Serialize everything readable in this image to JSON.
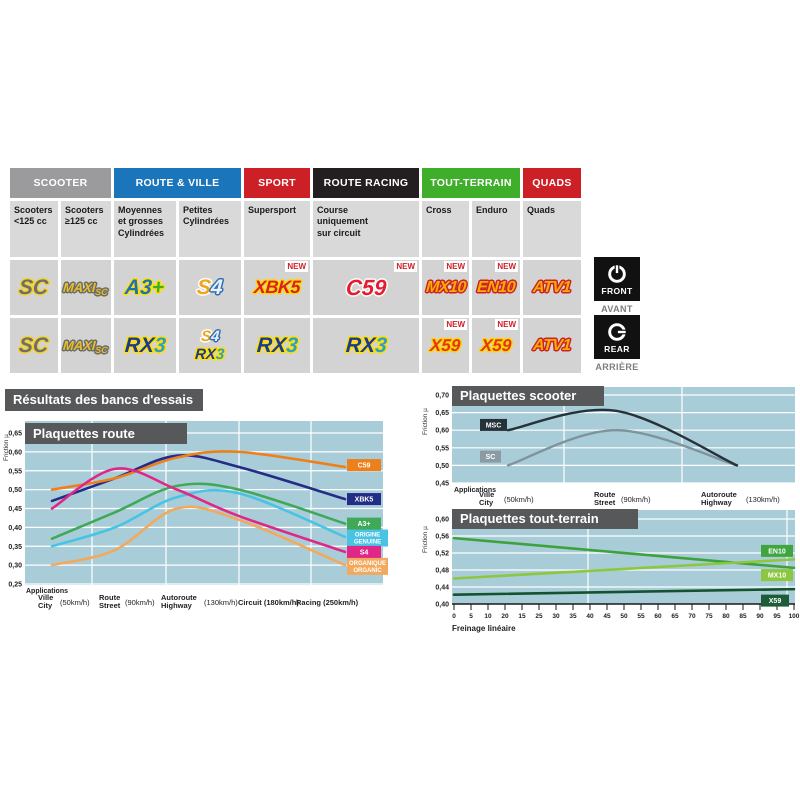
{
  "results_label": "Résultats des bancs d'essais",
  "axis_labels": {
    "applications": "Applications",
    "friction": "Friction µ"
  },
  "position_tags": {
    "front": {
      "label": "FRONT",
      "sub": "AVANT",
      "icon": "brake-disc-front-icon"
    },
    "rear": {
      "label": "REAR",
      "sub": "ARRIÈRE",
      "icon": "brake-disc-rear-icon"
    }
  },
  "matrix": {
    "new_label": "NEW",
    "groups": [
      {
        "label": "SCOOTER",
        "color": "#9b9b9d",
        "span": 2
      },
      {
        "label": "ROUTE & VILLE",
        "color": "#1b75bb",
        "span": 2
      },
      {
        "label": "SPORT",
        "color": "#cc2026",
        "span": 1
      },
      {
        "label": "ROUTE RACING",
        "color": "#231f20",
        "span": 1
      },
      {
        "label": "TOUT-TERRAIN",
        "color": "#3fae2a",
        "span": 2
      },
      {
        "label": "QUADS",
        "color": "#cc2026",
        "span": 1
      }
    ],
    "subheaders": [
      [
        "Scooters",
        "<125 cc"
      ],
      [
        "Scooters",
        "≥125 cc"
      ],
      [
        "Moyennes",
        "et grosses",
        "Cylindrées"
      ],
      [
        "Petites",
        "Cylindrées"
      ],
      [
        "Supersport"
      ],
      [
        "Course",
        "uniquement",
        "sur circuit"
      ],
      [
        "Cross"
      ],
      [
        "Enduro"
      ],
      [
        "Quads"
      ]
    ],
    "badges": {
      "sc": {
        "parts": [
          {
            "t": "SC",
            "cls": "p-sc"
          }
        ]
      },
      "maxisc": {
        "parts": [
          {
            "t": "MAXI",
            "cls": "p-maxi"
          },
          {
            "t": "SC",
            "cls": "p-maxi-sc"
          }
        ]
      },
      "a3": {
        "parts": [
          {
            "t": "A3",
            "cls": "p-a3"
          },
          {
            "t": "+",
            "cls": "p-a3p"
          }
        ]
      },
      "s4": {
        "parts": [
          {
            "t": "S",
            "cls": "p-s4s"
          },
          {
            "t": "4",
            "cls": "p-s44"
          }
        ]
      },
      "xbk5": {
        "parts": [
          {
            "t": "XBK5",
            "cls": "p-xbk"
          }
        ]
      },
      "c59": {
        "parts": [
          {
            "t": "C59",
            "cls": "p-c59"
          }
        ]
      },
      "mx10": {
        "parts": [
          {
            "t": "MX10",
            "cls": "p-off"
          }
        ]
      },
      "en10": {
        "parts": [
          {
            "t": "EN10",
            "cls": "p-off"
          }
        ]
      },
      "atv1": {
        "parts": [
          {
            "t": "ATV1",
            "cls": "p-off"
          }
        ]
      },
      "rx3": {
        "parts": [
          {
            "t": "RX",
            "cls": "p-rx"
          },
          {
            "t": "3",
            "cls": "p-rx3n"
          }
        ]
      },
      "x59": {
        "parts": [
          {
            "t": "X59",
            "cls": "p-x59"
          }
        ]
      }
    },
    "rows": [
      {
        "name": "front",
        "cells": [
          {
            "badges": [
              "sc"
            ]
          },
          {
            "badges": [
              "maxisc"
            ]
          },
          {
            "badges": [
              "a3"
            ]
          },
          {
            "badges": [
              "s4"
            ]
          },
          {
            "badges": [
              "xbk5"
            ],
            "new": true
          },
          {
            "badges": [
              "c59"
            ],
            "new": true
          },
          {
            "badges": [
              "mx10"
            ],
            "new": true
          },
          {
            "badges": [
              "en10"
            ],
            "new": true
          },
          {
            "badges": [
              "atv1"
            ]
          }
        ]
      },
      {
        "name": "rear",
        "cells": [
          {
            "badges": [
              "sc"
            ]
          },
          {
            "badges": [
              "maxisc"
            ]
          },
          {
            "badges": [
              "rx3"
            ]
          },
          {
            "badges": [
              "s4",
              "rx3"
            ]
          },
          {
            "badges": [
              "rx3"
            ]
          },
          {
            "badges": [
              "rx3"
            ]
          },
          {
            "badges": [
              "x59"
            ],
            "new": true
          },
          {
            "badges": [
              "x59"
            ],
            "new": true
          },
          {
            "badges": [
              "atv1"
            ]
          }
        ]
      }
    ]
  },
  "chart_data": [
    {
      "id": "route",
      "type": "line",
      "title": "Plaquettes route",
      "ylabel": "Friction µ",
      "applications_label": "Applications",
      "ylim": [
        0.25,
        0.65
      ],
      "yticks": [
        "0,65",
        "0,60",
        "0,55",
        "0,50",
        "0,45",
        "0,40",
        "0,35",
        "0,30",
        "0,25"
      ],
      "categories": [
        {
          "fr": "Ville",
          "en": "City",
          "speed": "(50km/h)"
        },
        {
          "fr": "Route",
          "en": "Street",
          "speed": "(90km/h)"
        },
        {
          "fr": "Autoroute",
          "en": "Highway",
          "speed": "(130km/h)"
        },
        {
          "fr": "Circuit (180km/h)"
        },
        {
          "fr": "Racing (250km/h)"
        }
      ],
      "series": [
        {
          "name": "ORGANIQUE ORGANIC",
          "label_lines": [
            "ORGANIQUE",
            "ORGANIC"
          ],
          "color": "#f3a95c",
          "values": [
            0.3,
            0.34,
            0.45,
            0.42,
            0.3
          ],
          "badge_v": 0.298
        },
        {
          "name": "ORIGINE GENUINE",
          "label_lines": [
            "ORIGINE",
            "GENUINE"
          ],
          "color": "#49c3e4",
          "values": [
            0.35,
            0.4,
            0.48,
            0.49,
            0.375
          ],
          "badge_v": 0.373
        },
        {
          "name": "A3+",
          "label_lines": [
            "A3+"
          ],
          "color": "#3fa958",
          "values": [
            0.37,
            0.44,
            0.51,
            0.5,
            0.41
          ],
          "badge_v": 0.41
        },
        {
          "name": "XBK5",
          "label_lines": [
            "XBK5"
          ],
          "color": "#232d87",
          "values": [
            0.47,
            0.53,
            0.59,
            0.56,
            0.475
          ],
          "badge_v": 0.475
        },
        {
          "name": "C59",
          "label_lines": [
            "C59"
          ],
          "color": "#ef7f1a",
          "values": [
            0.5,
            0.53,
            0.585,
            0.6,
            0.56
          ],
          "badge_v": 0.565
        },
        {
          "name": "S4",
          "label_lines": [
            "S4"
          ],
          "color": "#e02787",
          "values": [
            0.45,
            0.555,
            0.5,
            0.43,
            0.335
          ],
          "badge_v": 0.335
        }
      ]
    },
    {
      "id": "scooter",
      "type": "line",
      "title": "Plaquettes scooter",
      "ylabel": "Friction µ",
      "applications_label": "Applications",
      "ylim": [
        0.45,
        0.7
      ],
      "yticks": [
        "0,70",
        "0,65",
        "0,60",
        "0,55",
        "0,50",
        "0,45"
      ],
      "categories": [
        {
          "fr": "Ville",
          "en": "City",
          "speed": "(50km/h)"
        },
        {
          "fr": "Route",
          "en": "Street",
          "speed": "(90km/h)"
        },
        {
          "fr": "Autoroute",
          "en": "Highway",
          "speed": "(130km/h)"
        }
      ],
      "series": [
        {
          "name": "SC",
          "label_lines": [
            "SC"
          ],
          "color": "#7e939c",
          "badge_bg": "#8b9ba3",
          "values": [
            0.5,
            0.6,
            0.5
          ],
          "badge_v": 0.525
        },
        {
          "name": "MSC",
          "label_lines": [
            "MSC"
          ],
          "color": "#26323a",
          "badge_bg": "#26323a",
          "values": [
            0.6,
            0.655,
            0.5
          ],
          "badge_v": 0.615
        }
      ]
    },
    {
      "id": "tout-terrain",
      "type": "line",
      "title": "Plaquettes tout-terrain",
      "ylabel": "Friction µ",
      "xlabel": "Freinage linéaire",
      "ylim": [
        0.4,
        0.6
      ],
      "xrange": [
        0,
        100
      ],
      "yticks": [
        "0,60",
        "0,56",
        "0,52",
        "0,48",
        "0,44",
        "0,40"
      ],
      "xticks": [
        "0",
        "5",
        "10",
        "20",
        "15",
        "25",
        "30",
        "35",
        "40",
        "45",
        "50",
        "55",
        "60",
        "65",
        "70",
        "75",
        "80",
        "85",
        "90",
        "95",
        "100"
      ],
      "series": [
        {
          "name": "EN10",
          "label_lines": [
            "EN10"
          ],
          "color": "#3da23c",
          "badge_bg": "#3fa63f",
          "x": [
            0,
            100
          ],
          "values": [
            0.555,
            0.485
          ],
          "badge_v": 0.525
        },
        {
          "name": "MX10",
          "label_lines": [
            "MX10"
          ],
          "color": "#8dc63f",
          "badge_bg": "#8dc63f",
          "x": [
            0,
            100
          ],
          "values": [
            0.46,
            0.505
          ],
          "badge_v": 0.468
        },
        {
          "name": "X59",
          "label_lines": [
            "X59"
          ],
          "color": "#15522f",
          "badge_bg": "#1c5c38",
          "x": [
            0,
            100
          ],
          "values": [
            0.422,
            0.435
          ],
          "badge_v": 0.408
        }
      ]
    }
  ]
}
